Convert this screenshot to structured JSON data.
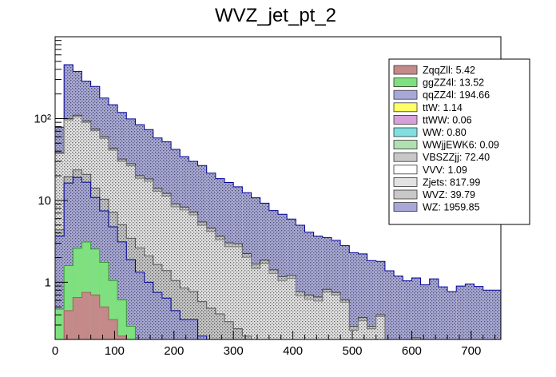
{
  "chart_data": {
    "type": "bar",
    "title": "WVZ_jet_pt_2",
    "xlabel": "",
    "ylabel": "",
    "stacked": true,
    "log_y": true,
    "xlim": [
      0,
      750
    ],
    "ylim": [
      0.2,
      1000
    ],
    "bin_width": 15,
    "x_ticks": [
      0,
      100,
      200,
      300,
      400,
      500,
      600,
      700
    ],
    "y_ticks": [
      {
        "value": 1,
        "label": "1"
      },
      {
        "value": 10,
        "label": "10"
      },
      {
        "value": 100,
        "label": "10²"
      }
    ],
    "legend_position": "top-right",
    "legend": [
      {
        "label": "ZqqZll: 5.42",
        "color": "#c48a8a"
      },
      {
        "label": "ggZZ4l: 13.52",
        "color": "#7fe07f"
      },
      {
        "label": "qqZZ4l: 194.66",
        "color": "#a8a8d8"
      },
      {
        "label": "ttW: 1.14",
        "color": "#ffff66"
      },
      {
        "label": "ttWW: 0.06",
        "color": "#d8a0d8"
      },
      {
        "label": "WW: 0.80",
        "color": "#80e0e0"
      },
      {
        "label": "WWjjEWK6: 0.09",
        "color": "#b0e0b0"
      },
      {
        "label": "VBSZZjj: 72.40",
        "color": "#c8c8c8"
      },
      {
        "label": "VVV: 1.09",
        "color": "#ffffff"
      },
      {
        "label": "Zjets: 817.99",
        "color": "#e2e2e2"
      },
      {
        "label": "WVZ: 39.79",
        "color": "#c8c8c8"
      },
      {
        "label": "WZ: 1959.85",
        "color": "#a8a8d8"
      }
    ],
    "stack_layers": [
      {
        "name": "ZqqZll",
        "fill": "#c48a8a",
        "stroke": "#a06060",
        "pattern": "none",
        "values": [
          0.12,
          0.45,
          0.65,
          0.75,
          0.7,
          0.5,
          0.35,
          0.22,
          0.12,
          0.05,
          0,
          0,
          0,
          0,
          0,
          0,
          0,
          0,
          0,
          0,
          0,
          0,
          0,
          0,
          0,
          0,
          0,
          0,
          0,
          0,
          0,
          0,
          0,
          0,
          0,
          0,
          0,
          0,
          0,
          0,
          0,
          0,
          0,
          0,
          0,
          0,
          0,
          0,
          0,
          0
        ]
      },
      {
        "name": "ggZZ4l",
        "fill": "#7fe07f",
        "stroke": "#3c9a3c",
        "pattern": "none",
        "values": [
          0.35,
          1.15,
          1.95,
          2.35,
          1.85,
          1.25,
          0.7,
          0.39,
          0.17,
          0.13,
          0.05,
          0.1,
          0.07,
          0.02,
          0,
          0.07,
          0,
          0,
          0,
          0,
          0,
          0,
          0,
          0,
          0,
          0,
          0,
          0,
          0,
          0,
          0,
          0,
          0,
          0,
          0,
          0,
          0,
          0,
          0,
          0,
          0,
          0,
          0,
          0,
          0,
          0,
          0,
          0,
          0,
          0
        ]
      },
      {
        "name": "qqZZ4l",
        "fill": "#a8a8d8",
        "stroke": "#000099",
        "pattern": "dots",
        "values": [
          3.2,
          14.7,
          16.5,
          13.6,
          8.3,
          5.7,
          3.7,
          2.5,
          1.6,
          1.15,
          0.95,
          0.65,
          0.57,
          0.43,
          0.35,
          0.28,
          0.22,
          0.18,
          0.15,
          0.11,
          0.08,
          0.06,
          0.05,
          0.04,
          0.03,
          0.02,
          0,
          0.02,
          0,
          0,
          0,
          0,
          0,
          0,
          0,
          0,
          0,
          0,
          0,
          0,
          0,
          0,
          0,
          0,
          0,
          0,
          0,
          0,
          0,
          0
        ]
      },
      {
        "name": "VBSZZjj",
        "fill": "#c8c8c8",
        "stroke": "#555555",
        "pattern": "dots",
        "values": [
          0.7,
          3.2,
          4.5,
          4.1,
          3.3,
          2.9,
          2.4,
          1.95,
          1.55,
          1.3,
          1.1,
          0.9,
          0.75,
          0.6,
          0.5,
          0.42,
          0.36,
          0.3,
          0.26,
          0.22,
          0.19,
          0.16,
          0.13,
          0.11,
          0.1,
          0.08,
          0.07,
          0.06,
          0.05,
          0.04,
          0.03,
          0.03,
          0.02,
          0.02,
          0.01,
          0.01,
          0,
          0,
          0,
          0,
          0,
          0,
          0,
          0,
          0,
          0,
          0,
          0,
          0,
          0
        ]
      },
      {
        "name": "Zjets",
        "fill": "#e2e2e2",
        "stroke": "#777777",
        "pattern": "dots",
        "values": [
          33,
          77,
          82,
          69,
          57,
          47,
          34,
          25,
          23,
          16,
          15,
          11.3,
          9.9,
          7.3,
          6.8,
          5.9,
          4.4,
          3.7,
          2.9,
          2.4,
          2.45,
          1.8,
          1.3,
          1.55,
          1.15,
          0.95,
          1.05,
          0.6,
          0.57,
          0.55,
          0.73,
          0.67,
          0.55,
          0.24,
          0.33,
          0.26,
          0.38,
          0.16,
          0.13,
          0.08,
          0.2,
          0.1,
          0.01,
          0,
          0.01,
          0,
          0,
          0,
          0,
          0
        ]
      },
      {
        "name": "WVZ",
        "fill": "#c8c8c8",
        "stroke": "#444444",
        "pattern": "dots",
        "values": [
          1.2,
          3.5,
          4.2,
          3.9,
          3.4,
          2.9,
          2.4,
          2.0,
          1.7,
          1.45,
          1.25,
          1.05,
          0.9,
          0.75,
          0.65,
          0.55,
          0.47,
          0.4,
          0.34,
          0.3,
          0.25,
          0.22,
          0.19,
          0.16,
          0.14,
          0.12,
          0.1,
          0.09,
          0.08,
          0.07,
          0.06,
          0.05,
          0.04,
          0.03,
          0.03,
          0.02,
          0.02,
          0.02,
          0.01,
          0.01,
          0.01,
          0.01,
          0,
          0,
          0,
          0,
          0,
          0,
          0,
          0
        ]
      },
      {
        "name": "WZ",
        "fill": "#a8a8d8",
        "stroke": "#000099",
        "pattern": "dots",
        "values": [
          40,
          356,
          267,
          193,
          172,
          118,
          104,
          87,
          71,
          64,
          55,
          44,
          40,
          33,
          26,
          22.8,
          21.2,
          17,
          14.8,
          13.5,
          11.7,
          10.2,
          9.1,
          7.4,
          6.1,
          5.6,
          4.7,
          4.2,
          3.4,
          3.0,
          2.7,
          2.5,
          2.2,
          2.0,
          1.85,
          1.55,
          1.4,
          1.2,
          1.05,
          0.95,
          0.92,
          0.82,
          1.09,
          0.88,
          0.76,
          0.9,
          0.95,
          0.89,
          0.8,
          0.8
        ]
      }
    ]
  }
}
